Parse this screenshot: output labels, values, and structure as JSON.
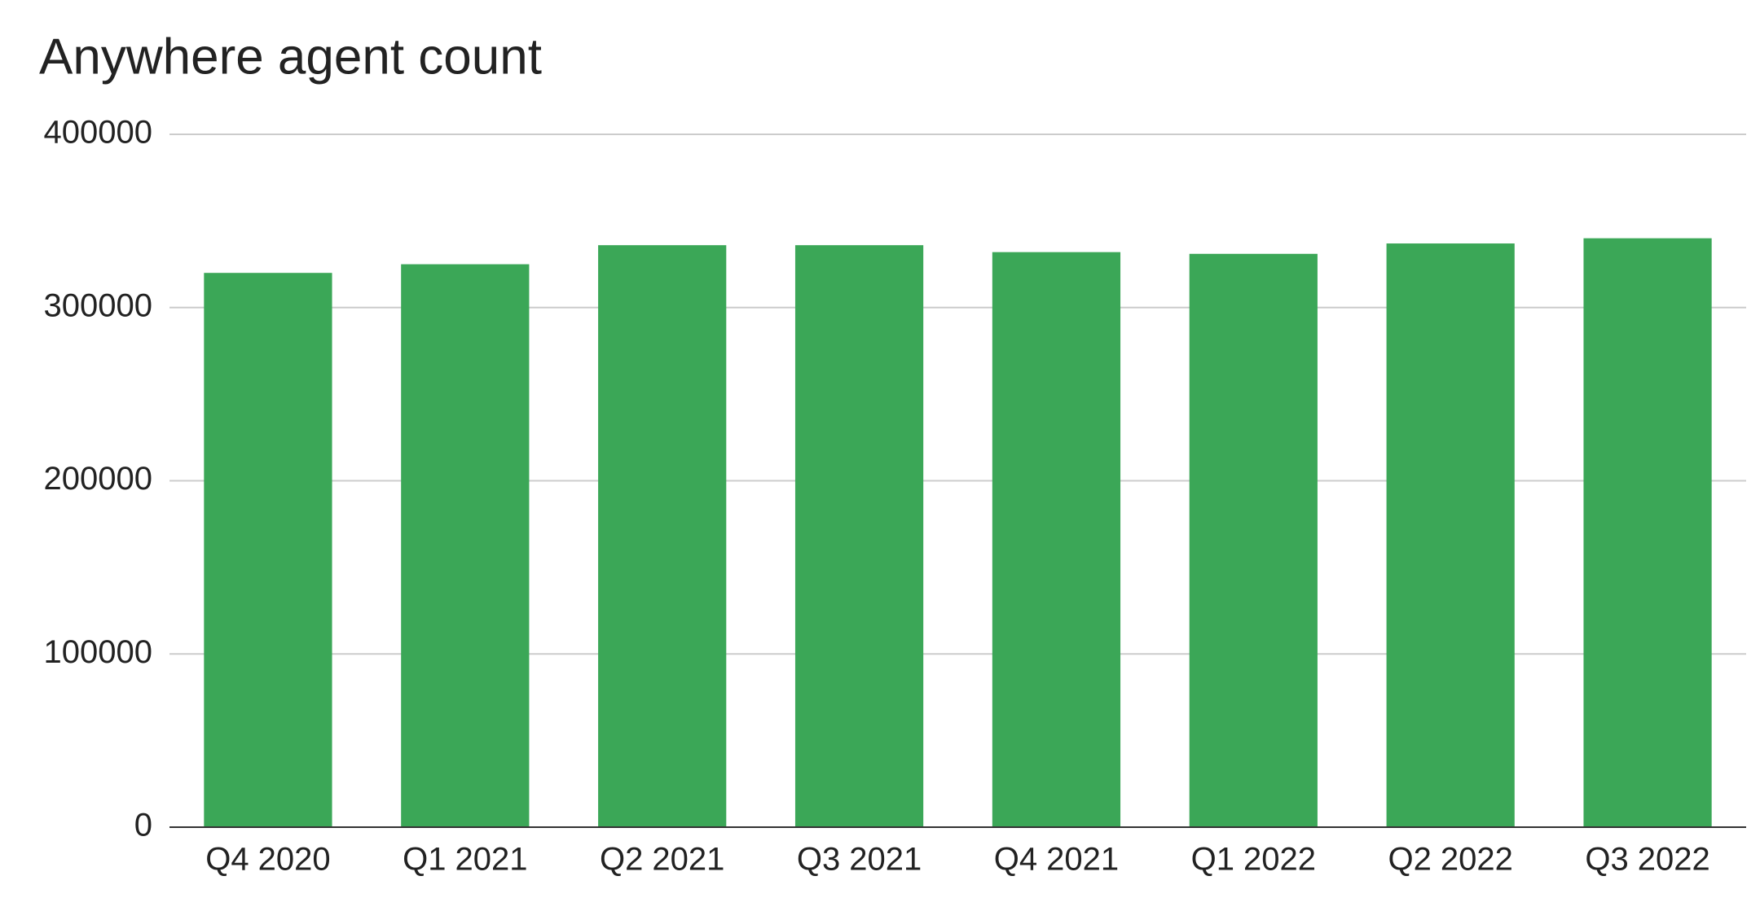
{
  "chart_data": {
    "type": "bar",
    "title": "Anywhere agent count",
    "categories": [
      "Q4 2020",
      "Q1 2021",
      "Q2 2021",
      "Q3 2021",
      "Q4 2021",
      "Q1 2022",
      "Q2 2022",
      "Q3 2022"
    ],
    "values": [
      320000,
      325000,
      336000,
      336000,
      332000,
      331000,
      337000,
      340000
    ],
    "color": "#3ba757",
    "ylim": [
      0,
      400000
    ],
    "yticks": [
      0,
      100000,
      200000,
      300000,
      400000
    ],
    "grid": true
  }
}
